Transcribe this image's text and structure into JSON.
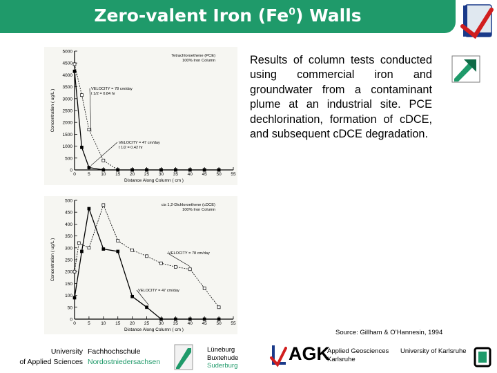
{
  "header": {
    "title_main": "Zero-valent Iron (Fe",
    "title_sup": "0",
    "title_end": ") Walls",
    "bar_color": "#1f9a6a"
  },
  "body": {
    "description": "Results of column tests conducted using commercial iron and groundwater from a contaminant plume at an industrial site. PCE dechlorination, formation of cDCE, and subsequent cDCE degradation.",
    "source": "Source: Gillham & O’Hannesin, 1994"
  },
  "footer": {
    "univ_line1": "University",
    "univ_line2": "of Applied Sciences",
    "fh_line1": "Fachhochschule",
    "fh_line2": "Nordostniedersachsen",
    "towns": [
      "Lüneburg",
      "Buxtehude",
      "Suderburg"
    ],
    "agk": "AGK",
    "agk_line1": "Applied Geosciences",
    "agk_line2": "Karlsruhe",
    "karlsruhe": "University of Karlsruhe"
  },
  "icons": {
    "top_logo": "university-logo-icon",
    "arrow_logo": "green-arrow-logo-icon",
    "footer_logos": [
      "fh-logo-icon",
      "university-logo-icon",
      "karlsruhe-logo-icon"
    ]
  },
  "chart_data": [
    {
      "type": "line",
      "title": "Tetrachloroethene (PCE)",
      "subtitle": "100% Iron Column",
      "xlabel": "Distance Along Column ( cm )",
      "ylabel": "Concentration ( ug/L )",
      "xlim": [
        0,
        55
      ],
      "ylim": [
        0,
        5000
      ],
      "xticks": [
        0,
        5,
        10,
        15,
        20,
        25,
        30,
        35,
        40,
        45,
        50,
        55
      ],
      "yticks": [
        0,
        500,
        1000,
        1500,
        2000,
        2500,
        3000,
        3500,
        4000,
        4500,
        5000
      ],
      "series": [
        {
          "x": [
            0,
            2.5,
            5,
            10,
            15,
            20,
            25,
            30,
            35,
            40,
            45,
            50
          ],
          "y": [
            4450,
            3150,
            1700,
            400,
            0,
            0,
            0,
            0,
            0,
            0,
            0,
            0
          ],
          "marker": "square-open",
          "dash": true
        },
        {
          "x": [
            0,
            2.5,
            5,
            10,
            15,
            20,
            25,
            30,
            35,
            40,
            45,
            50
          ],
          "y": [
            4150,
            950,
            100,
            0,
            0,
            0,
            0,
            0,
            0,
            0,
            0,
            0
          ],
          "marker": "square-filled",
          "dash": false
        }
      ],
      "annotations": [
        {
          "lines": [
            "VELOCITY = 78 cm/day",
            "t 1/2 = 0.84 hr"
          ]
        },
        {
          "lines": [
            "VELOCITY = 47 cm/day",
            "t 1/2 = 0.42 hr"
          ]
        }
      ]
    },
    {
      "type": "line",
      "title": "cis 1,2-Dichloroethene (cDCE)",
      "subtitle": "100% Iron Column",
      "xlabel": "Distance Along Column ( cm )",
      "ylabel": "Concentration ( ug/L )",
      "xlim": [
        0,
        55
      ],
      "ylim": [
        0,
        500
      ],
      "xticks": [
        0,
        5,
        10,
        15,
        20,
        25,
        30,
        35,
        40,
        45,
        50,
        55
      ],
      "yticks": [
        0,
        50,
        100,
        150,
        200,
        250,
        300,
        350,
        400,
        450,
        500
      ],
      "series": [
        {
          "x": [
            0,
            1.5,
            5,
            10,
            15,
            20,
            25,
            30,
            35,
            40,
            45,
            50
          ],
          "y": [
            200,
            320,
            300,
            480,
            330,
            290,
            265,
            235,
            220,
            210,
            130,
            50
          ],
          "marker": "square-open",
          "dash": true
        },
        {
          "x": [
            0,
            2.5,
            5,
            10,
            15,
            20,
            25,
            30,
            35,
            40,
            45,
            50
          ],
          "y": [
            90,
            285,
            465,
            295,
            285,
            95,
            50,
            0,
            0,
            0,
            0,
            0
          ],
          "marker": "square-filled",
          "dash": false
        }
      ],
      "annotations": [
        {
          "lines": [
            "VELOCITY = 78 cm/day"
          ]
        },
        {
          "lines": [
            "VELOCITY = 47 cm/day"
          ]
        }
      ]
    }
  ]
}
